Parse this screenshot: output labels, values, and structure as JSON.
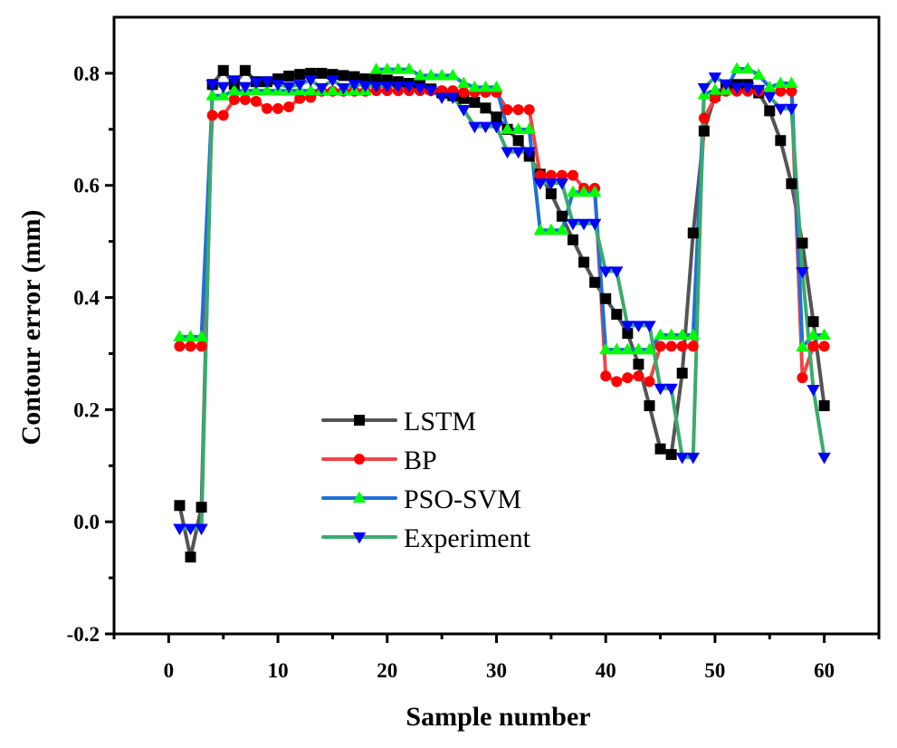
{
  "chart_data": {
    "type": "line",
    "title": "",
    "xlabel": "Sample number",
    "ylabel": "Contour error (mm)",
    "xlim": [
      -5,
      65
    ],
    "ylim": [
      -0.2,
      0.9
    ],
    "xticks": [
      0,
      10,
      20,
      30,
      40,
      50,
      60
    ],
    "xtick_labels": [
      "0",
      "10",
      "20",
      "30",
      "40",
      "50",
      "60"
    ],
    "xminor_ticks": [
      -5,
      5,
      15,
      25,
      35,
      45,
      55,
      65
    ],
    "yticks": [
      -0.2,
      0.0,
      0.2,
      0.4,
      0.6,
      0.8
    ],
    "ytick_labels": [
      "-0.2",
      "0.0",
      "0.2",
      "0.4",
      "0.6",
      "0.8"
    ],
    "yminor_ticks": [
      -0.1,
      0.1,
      0.3,
      0.5,
      0.7
    ],
    "grid": false,
    "legend_position": "lower-center",
    "x": [
      1,
      2,
      3,
      4,
      5,
      6,
      7,
      8,
      9,
      10,
      11,
      12,
      13,
      14,
      15,
      16,
      17,
      18,
      19,
      20,
      21,
      22,
      23,
      24,
      25,
      26,
      27,
      28,
      29,
      30,
      31,
      32,
      33,
      34,
      35,
      36,
      37,
      38,
      39,
      40,
      41,
      42,
      43,
      44,
      45,
      46,
      47,
      48,
      49,
      50,
      51,
      52,
      53,
      54,
      55,
      56,
      57,
      58,
      59,
      60
    ],
    "series": [
      {
        "name": "LSTM",
        "line_color": "#545454",
        "marker": "square",
        "marker_color": "#000000",
        "values": [
          0.029,
          -0.063,
          0.026,
          0.78,
          0.805,
          0.78,
          0.805,
          0.785,
          0.785,
          0.79,
          0.795,
          0.798,
          0.8,
          0.8,
          0.798,
          0.796,
          0.794,
          0.79,
          0.79,
          0.788,
          0.785,
          0.782,
          0.778,
          0.772,
          0.765,
          0.76,
          0.755,
          0.748,
          0.738,
          0.722,
          0.7,
          0.68,
          0.652,
          0.62,
          0.585,
          0.545,
          0.503,
          0.463,
          0.427,
          0.398,
          0.37,
          0.336,
          0.281,
          0.207,
          0.13,
          0.12,
          0.265,
          0.515,
          0.697,
          0.76,
          0.775,
          0.78,
          0.78,
          0.765,
          0.733,
          0.68,
          0.603,
          0.497,
          0.357,
          0.207
        ]
      },
      {
        "name": "BP",
        "line_color": "#f04646",
        "marker": "circle",
        "marker_color": "#ff0000",
        "values": [
          0.313,
          0.313,
          0.313,
          0.725,
          0.725,
          0.753,
          0.753,
          0.75,
          0.737,
          0.737,
          0.74,
          0.755,
          0.757,
          0.768,
          0.768,
          0.768,
          0.768,
          0.768,
          0.769,
          0.769,
          0.769,
          0.769,
          0.769,
          0.769,
          0.769,
          0.769,
          0.766,
          0.766,
          0.766,
          0.766,
          0.735,
          0.735,
          0.735,
          0.618,
          0.618,
          0.618,
          0.618,
          0.595,
          0.595,
          0.26,
          0.25,
          0.257,
          0.26,
          0.25,
          0.313,
          0.313,
          0.313,
          0.313,
          0.72,
          0.756,
          0.768,
          0.768,
          0.768,
          0.768,
          0.768,
          0.768,
          0.768,
          0.257,
          0.313,
          0.313
        ]
      },
      {
        "name": "PSO-SVM",
        "line_color": "#1f6fd8",
        "marker": "triangle-up",
        "marker_color": "#00ff00",
        "values": [
          0.33,
          0.33,
          0.33,
          0.76,
          0.76,
          0.769,
          0.769,
          0.769,
          0.769,
          0.769,
          0.769,
          0.769,
          0.769,
          0.769,
          0.769,
          0.769,
          0.769,
          0.769,
          0.807,
          0.807,
          0.807,
          0.807,
          0.796,
          0.796,
          0.796,
          0.796,
          0.782,
          0.775,
          0.775,
          0.775,
          0.7,
          0.7,
          0.7,
          0.52,
          0.52,
          0.52,
          0.588,
          0.588,
          0.588,
          0.307,
          0.307,
          0.307,
          0.307,
          0.307,
          0.333,
          0.333,
          0.333,
          0.333,
          0.762,
          0.77,
          0.77,
          0.808,
          0.808,
          0.797,
          0.775,
          0.782,
          0.782,
          0.312,
          0.333,
          0.333
        ]
      },
      {
        "name": "Experiment",
        "line_color": "#3aaa6c",
        "marker": "triangle-down",
        "marker_color": "#0000ff",
        "values": [
          -0.012,
          -0.012,
          -0.012,
          0.78,
          0.776,
          0.788,
          0.776,
          0.784,
          0.786,
          0.78,
          0.776,
          0.78,
          0.788,
          0.774,
          0.788,
          0.774,
          0.78,
          0.778,
          0.777,
          0.777,
          0.777,
          0.777,
          0.774,
          0.77,
          0.757,
          0.757,
          0.735,
          0.705,
          0.705,
          0.705,
          0.66,
          0.66,
          0.66,
          0.604,
          0.604,
          0.604,
          0.532,
          0.532,
          0.532,
          0.447,
          0.447,
          0.35,
          0.35,
          0.35,
          0.238,
          0.238,
          0.115,
          0.115,
          0.774,
          0.793,
          0.781,
          0.775,
          0.775,
          0.771,
          0.758,
          0.737,
          0.737,
          0.446,
          0.236,
          0.115
        ]
      }
    ]
  }
}
